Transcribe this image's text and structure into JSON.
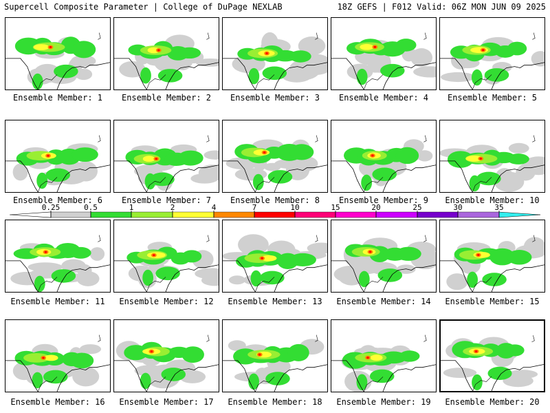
{
  "header": {
    "left": "Supercell Composite Parameter | College of DuPage NEXLAB",
    "right": "18Z GEFS | F012 Valid: 06Z MON JUN 09 2025"
  },
  "legend": {
    "levels": [
      "0.25",
      "0.5",
      "1",
      "2",
      "4",
      "7",
      "10",
      "15",
      "20",
      "25",
      "30",
      "35"
    ],
    "colors": [
      "#d0d0d0",
      "#33dd33",
      "#99ee33",
      "#ffff33",
      "#ff8800",
      "#ff0000",
      "#ff0077",
      "#ff00cc",
      "#cc00ff",
      "#7700cc",
      "#aa66dd",
      "#33eeee"
    ]
  },
  "members": [
    {
      "label": "Ensemble Member: 1"
    },
    {
      "label": "Ensemble Member: 2"
    },
    {
      "label": "Ensemble Member: 3"
    },
    {
      "label": "Ensemble Member: 4"
    },
    {
      "label": "Ensemble Member: 5"
    },
    {
      "label": "Ensemble Member: 6"
    },
    {
      "label": "Ensemble Member: 7"
    },
    {
      "label": "Ensemble Member: 8"
    },
    {
      "label": "Ensemble Member: 9"
    },
    {
      "label": "Ensemble Member: 10"
    },
    {
      "label": "Ensemble Member: 11"
    },
    {
      "label": "Ensemble Member: 12"
    },
    {
      "label": "Ensemble Member: 13"
    },
    {
      "label": "Ensemble Member: 14"
    },
    {
      "label": "Ensemble Member: 15"
    },
    {
      "label": "Ensemble Member: 16"
    },
    {
      "label": "Ensemble Member: 17"
    },
    {
      "label": "Ensemble Member: 18"
    },
    {
      "label": "Ensemble Member: 19"
    },
    {
      "label": "Ensemble Member: 20",
      "selected": true
    }
  ]
}
